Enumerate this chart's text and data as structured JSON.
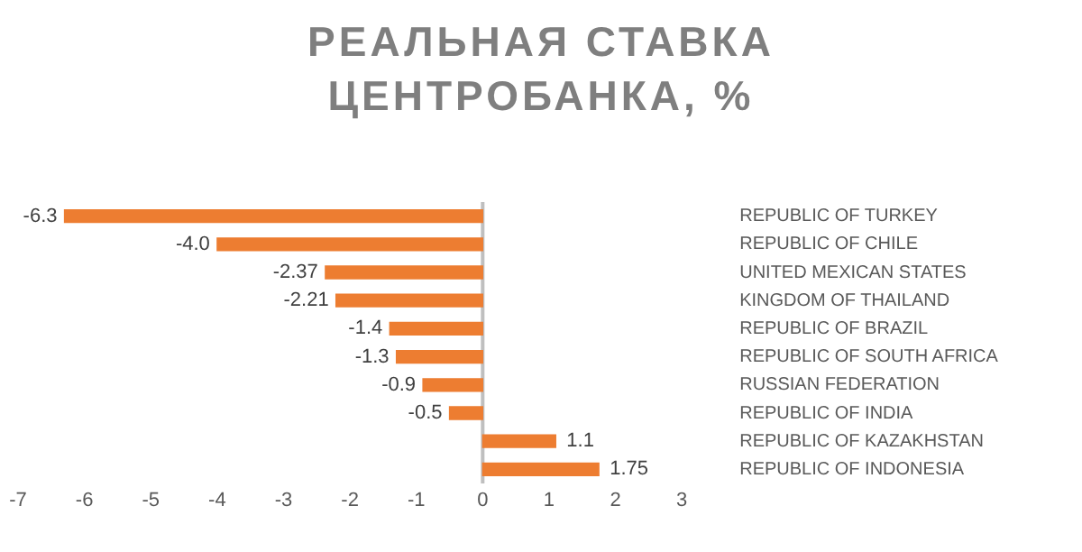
{
  "chart_data": {
    "type": "bar",
    "orientation": "horizontal",
    "title": "РЕАЛЬНАЯ СТАВКА ЦЕНТРОБАНКА, %",
    "categories": [
      "REPUBLIC OF TURKEY",
      "REPUBLIC OF CHILE",
      "UNITED MEXICAN STATES",
      "KINGDOM OF THAILAND",
      "REPUBLIC OF BRAZIL",
      "REPUBLIC OF SOUTH AFRICA",
      "RUSSIAN FEDERATION",
      "REPUBLIC OF INDIA",
      "REPUBLIC OF KAZAKHSTAN",
      "REPUBLIC OF INDONESIA"
    ],
    "values": [
      -6.3,
      -4.0,
      -2.37,
      -2.21,
      -1.4,
      -1.3,
      -0.9,
      -0.5,
      1.1,
      1.75
    ],
    "value_labels": [
      "-6.3",
      "-4.0",
      "-2.37",
      "-2.21",
      "-1.4",
      "-1.3",
      "-0.9",
      "-0.5",
      "1.1",
      "1.75"
    ],
    "color": "#ed7d31",
    "xlim": [
      -7,
      3
    ],
    "xticks": [
      -7,
      -6,
      -5,
      -4,
      -3,
      -2,
      -1,
      0,
      1,
      2,
      3
    ],
    "ref_lines": [
      {
        "axis": "x",
        "value": 0,
        "color": "#bfbfbf"
      }
    ],
    "grid": false,
    "legend": false
  }
}
